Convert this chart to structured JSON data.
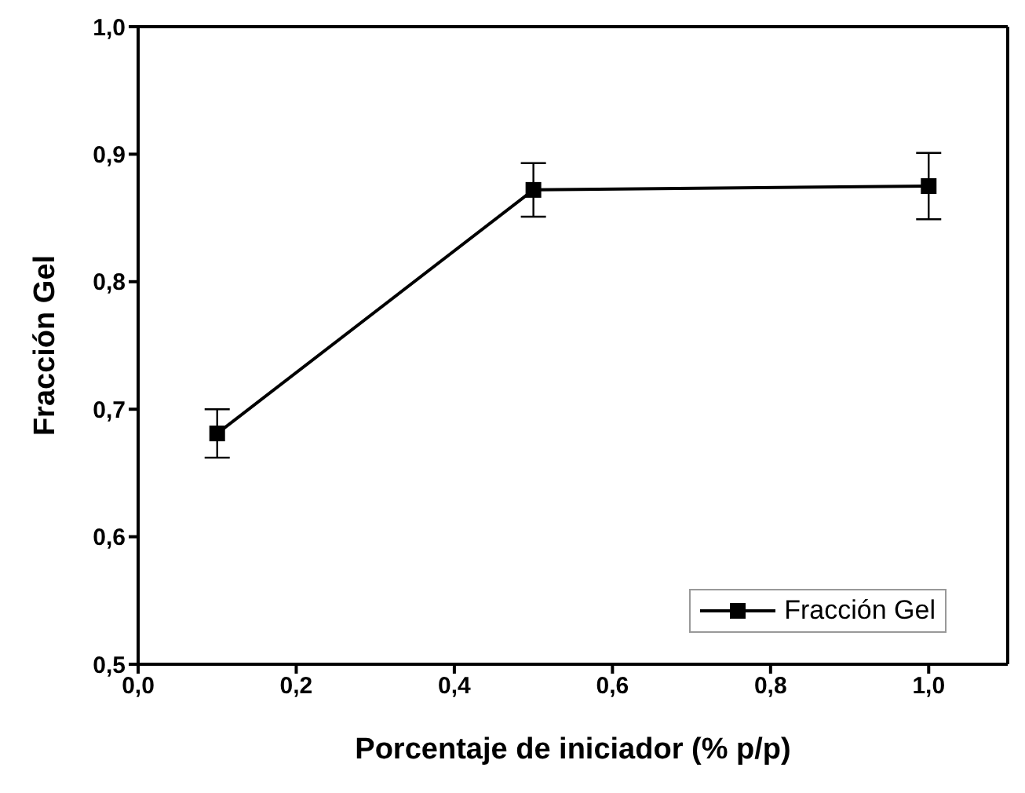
{
  "chart_data": {
    "type": "line",
    "xlabel": "Porcentaje de iniciador (% p/p)",
    "ylabel": "Fracción Gel",
    "x": [
      0.1,
      0.5,
      1.0
    ],
    "series": [
      {
        "name": "Fracción Gel",
        "color": "#000000",
        "values": [
          0.681,
          0.872,
          0.875
        ],
        "errors": [
          0.019,
          0.021,
          0.026
        ]
      }
    ],
    "xlim": [
      0,
      1.1
    ],
    "xticks": [
      {
        "value": 0,
        "label": "0,0"
      },
      {
        "value": 0.2,
        "label": "0,2"
      },
      {
        "value": 0.4,
        "label": "0,4"
      },
      {
        "value": 0.6,
        "label": "0,6"
      },
      {
        "value": 0.8,
        "label": "0,8"
      },
      {
        "value": 1.0,
        "label": "1,0"
      }
    ],
    "ylim": [
      0.5,
      1.0
    ],
    "yticks": [
      {
        "value": 0.5,
        "label": "0,5"
      },
      {
        "value": 0.6,
        "label": "0,6"
      },
      {
        "value": 0.7,
        "label": "0,7"
      },
      {
        "value": 0.8,
        "label": "0,8"
      },
      {
        "value": 0.9,
        "label": "0,9"
      },
      {
        "value": 1.0,
        "label": "1,0"
      }
    ],
    "grid": false,
    "legend": "bottom right",
    "marker": "square",
    "line_style": "solid"
  }
}
